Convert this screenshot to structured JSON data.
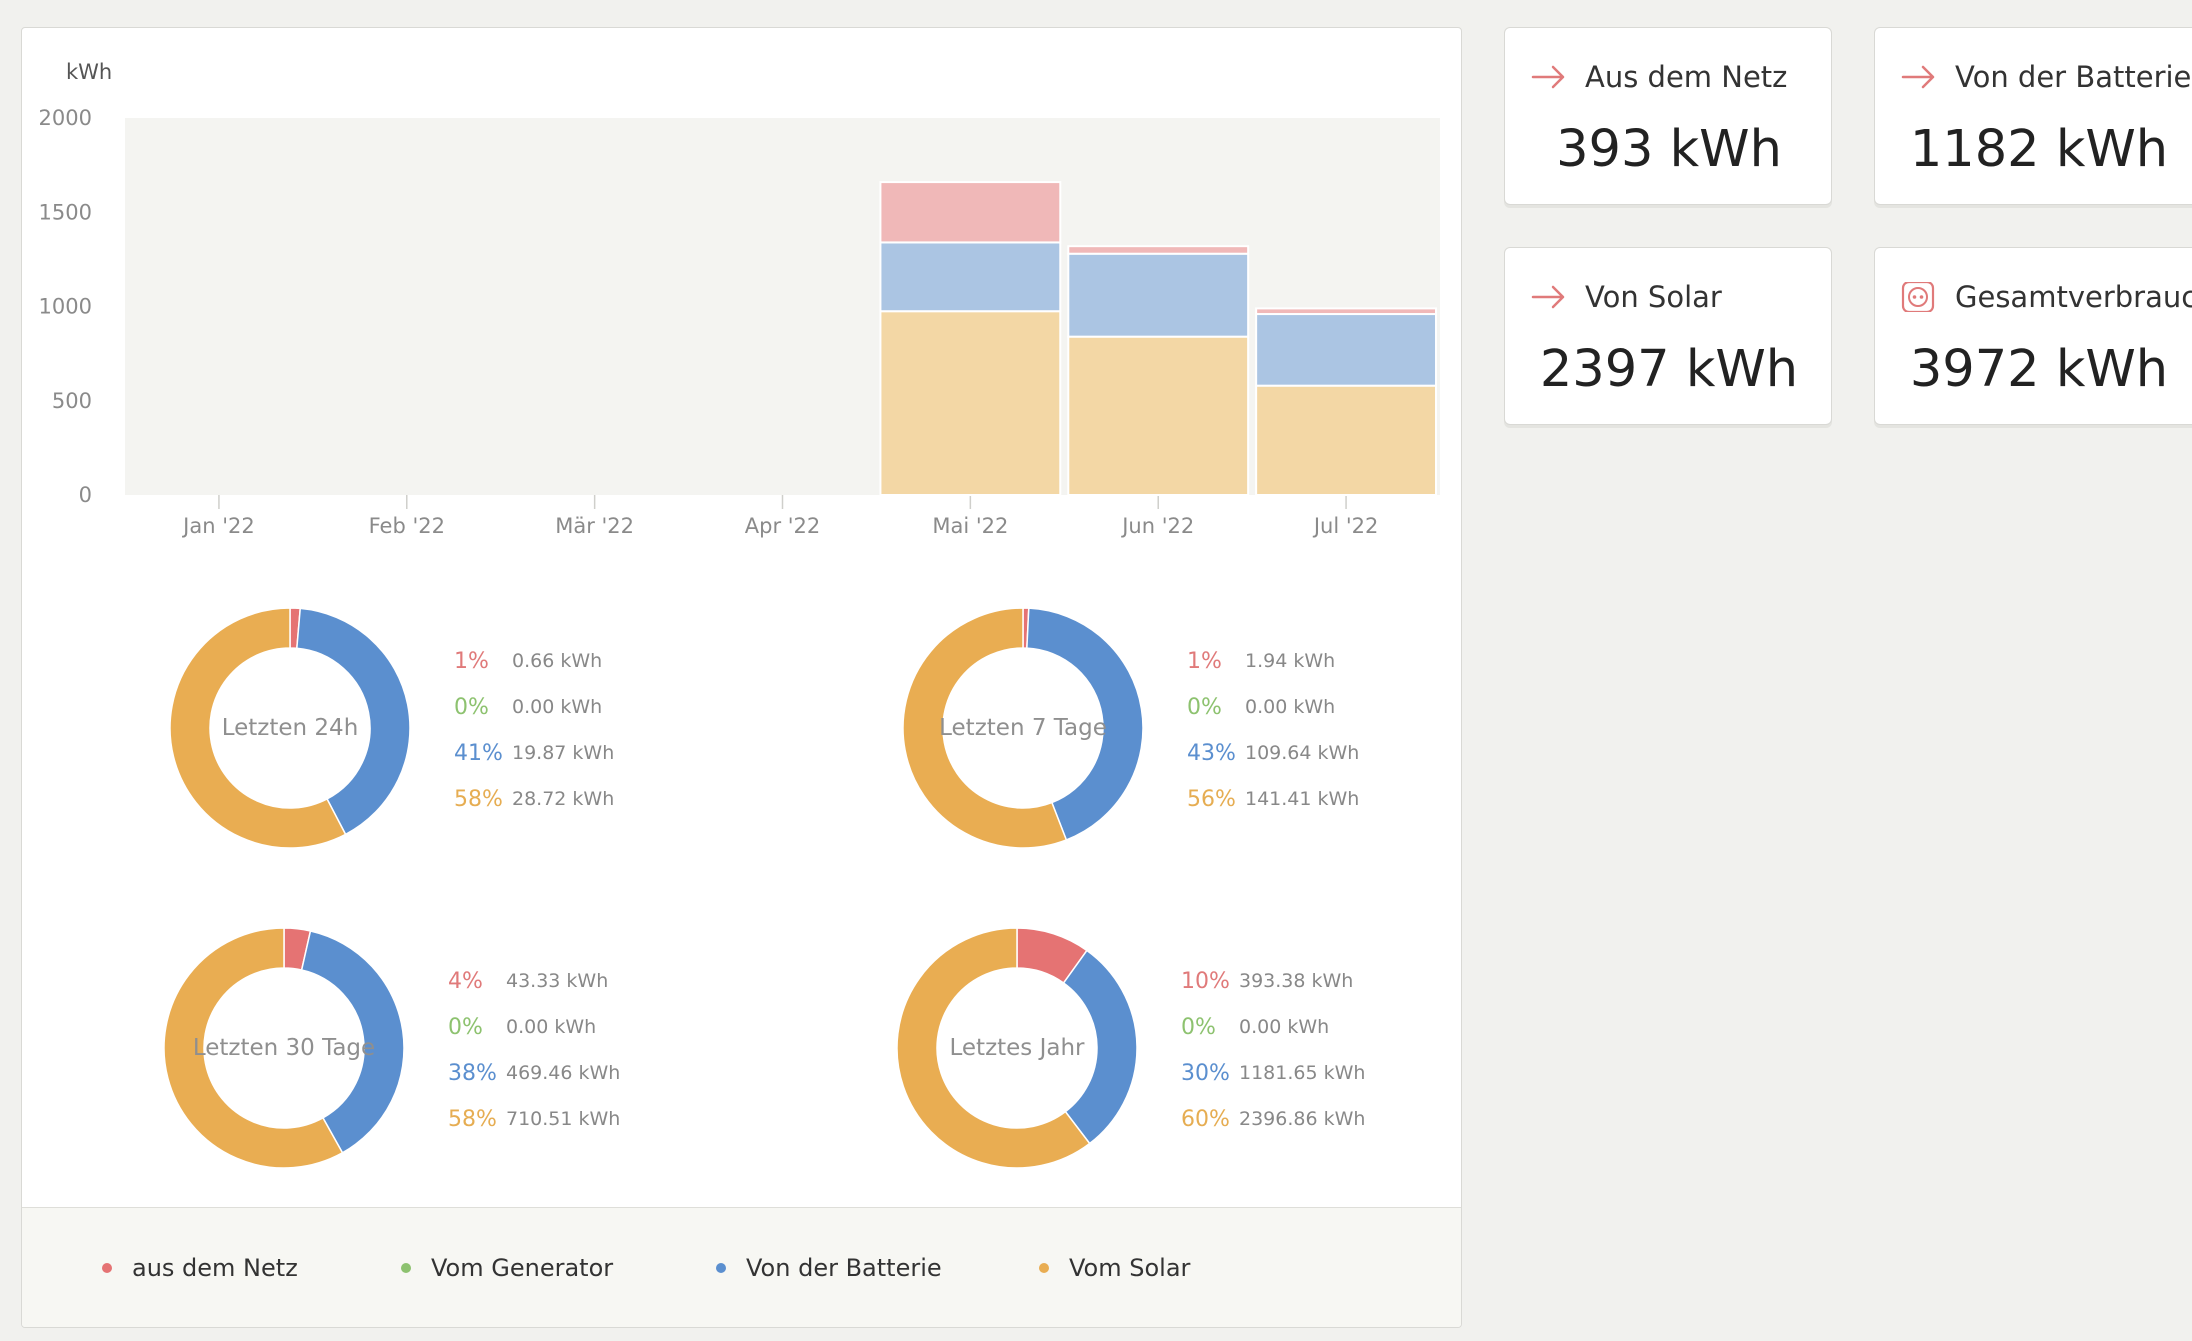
{
  "chart_data": [
    {
      "type": "bar",
      "stacked": true,
      "ylabel": "kWh",
      "ylim": [
        0,
        2000
      ],
      "yticks": [
        "0",
        "500",
        "1000",
        "1500",
        "2000"
      ],
      "categories": [
        "Jan '22",
        "Feb '22",
        "Mär '22",
        "Apr '22",
        "Mai '22",
        "Jun '22",
        "Jul '22"
      ],
      "series": [
        {
          "name": "Vom Solar",
          "color": "#f3d7a5",
          "values": [
            0,
            0,
            0,
            0,
            975,
            840,
            580
          ]
        },
        {
          "name": "Von der Batterie",
          "color": "#abc5e3",
          "values": [
            0,
            0,
            0,
            0,
            365,
            440,
            380
          ]
        },
        {
          "name": "Vom Generator",
          "color": "#b9dca4",
          "values": [
            0,
            0,
            0,
            0,
            0,
            0,
            0
          ]
        },
        {
          "name": "aus dem Netz",
          "color": "#f0b8b8",
          "values": [
            0,
            0,
            0,
            0,
            320,
            40,
            30
          ]
        }
      ],
      "grid": false
    },
    {
      "type": "pie",
      "title": "Letzten 24h",
      "labels": [
        "aus dem Netz",
        "Vom Generator",
        "Von der Batterie",
        "Vom Solar"
      ],
      "percents": [
        "1%",
        "0%",
        "41%",
        "58%"
      ],
      "values": [
        "0.66 kWh",
        "0.00 kWh",
        "19.87 kWh",
        "28.72 kWh"
      ]
    },
    {
      "type": "pie",
      "title": "Letzten 7 Tage",
      "labels": [
        "aus dem Netz",
        "Vom Generator",
        "Von der Batterie",
        "Vom Solar"
      ],
      "percents": [
        "1%",
        "0%",
        "43%",
        "56%"
      ],
      "values": [
        "1.94 kWh",
        "0.00 kWh",
        "109.64 kWh",
        "141.41 kWh"
      ]
    },
    {
      "type": "pie",
      "title": "Letzten 30 Tage",
      "labels": [
        "aus dem Netz",
        "Vom Generator",
        "Von der Batterie",
        "Vom Solar"
      ],
      "percents": [
        "4%",
        "0%",
        "38%",
        "58%"
      ],
      "values": [
        "43.33 kWh",
        "0.00 kWh",
        "469.46 kWh",
        "710.51 kWh"
      ]
    },
    {
      "type": "pie",
      "title": "Letztes Jahr",
      "labels": [
        "aus dem Netz",
        "Vom Generator",
        "Von der Batterie",
        "Vom Solar"
      ],
      "percents": [
        "10%",
        "0%",
        "30%",
        "60%"
      ],
      "values": [
        "393.38 kWh",
        "0.00 kWh",
        "1181.65 kWh",
        "2396.86 kWh"
      ]
    }
  ],
  "donuts": [
    {
      "center_label": "Letzten 24h",
      "slices": [
        0.0136,
        0.0,
        0.4098,
        0.5766
      ],
      "rows": [
        {
          "pct": "1%",
          "val": "0.66 kWh"
        },
        {
          "pct": "0%",
          "val": "0.00 kWh"
        },
        {
          "pct": "41%",
          "val": "19.87 kWh"
        },
        {
          "pct": "58%",
          "val": "28.72 kWh"
        }
      ]
    },
    {
      "center_label": "Letzten 7 Tage",
      "slices": [
        0.0077,
        0.0,
        0.4335,
        0.5588
      ],
      "rows": [
        {
          "pct": "1%",
          "val": "1.94 kWh"
        },
        {
          "pct": "0%",
          "val": "0.00 kWh"
        },
        {
          "pct": "43%",
          "val": "109.64 kWh"
        },
        {
          "pct": "56%",
          "val": "141.41 kWh"
        }
      ]
    },
    {
      "center_label": "Letzten 30 Tage",
      "slices": [
        0.0354,
        0.0,
        0.3836,
        0.581
      ],
      "rows": [
        {
          "pct": "4%",
          "val": "43.33 kWh"
        },
        {
          "pct": "0%",
          "val": "0.00 kWh"
        },
        {
          "pct": "38%",
          "val": "469.46 kWh"
        },
        {
          "pct": "58%",
          "val": "710.51 kWh"
        }
      ]
    },
    {
      "center_label": "Letztes Jahr",
      "slices": [
        0.099,
        0.0,
        0.2975,
        0.6035
      ],
      "rows": [
        {
          "pct": "10%",
          "val": "393.38 kWh"
        },
        {
          "pct": "0%",
          "val": "0.00 kWh"
        },
        {
          "pct": "30%",
          "val": "1181.65 kWh"
        },
        {
          "pct": "60%",
          "val": "2396.86 kWh"
        }
      ]
    }
  ],
  "colors": {
    "grid": "#e57373",
    "generator": "#8dc26f",
    "battery": "#5b8fcf",
    "solar": "#e9ad52",
    "plot_bg": "#f4f4f1"
  },
  "legend": [
    {
      "label": "aus dem Netz",
      "color": "#e57373"
    },
    {
      "label": "Vom Generator",
      "color": "#8dc26f"
    },
    {
      "label": "Von der Batterie",
      "color": "#5b8fcf"
    },
    {
      "label": "Vom Solar",
      "color": "#e9ad52"
    }
  ],
  "stat_cards": [
    {
      "icon": "arrow-right-icon",
      "title": "Aus dem Netz",
      "value": "393 kWh"
    },
    {
      "icon": "arrow-right-icon",
      "title": "Von der Batterie",
      "value": "1182 kWh"
    },
    {
      "icon": "arrow-right-icon",
      "title": "Von Solar",
      "value": "2397 kWh"
    },
    {
      "icon": "power-socket-icon",
      "title": "Gesamtverbrauch",
      "value": "3972 kWh"
    }
  ]
}
